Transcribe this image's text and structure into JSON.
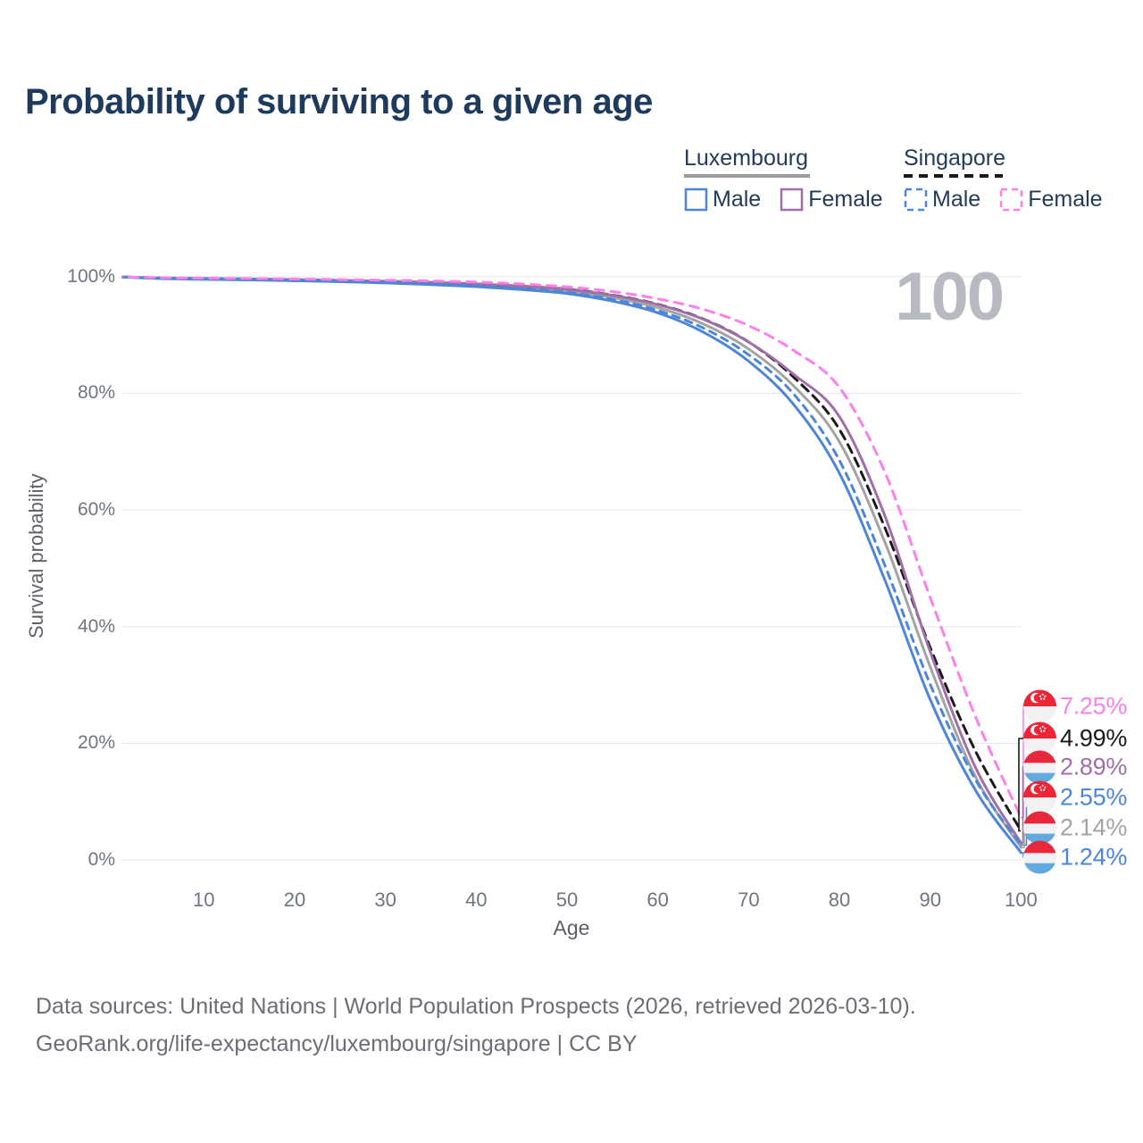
{
  "header": {
    "title": "Probability of surviving to a given age"
  },
  "legend": {
    "groups": [
      {
        "country": "Luxembourg",
        "line_style": "solid",
        "line_color": "#9b9b9b",
        "items": [
          {
            "label": "Male",
            "color": "#4d86d8",
            "dashed": false
          },
          {
            "label": "Female",
            "color": "#a06fa8",
            "dashed": false
          }
        ]
      },
      {
        "country": "Singapore",
        "line_style": "dashed",
        "line_color": "#1a1a1a",
        "items": [
          {
            "label": "Male",
            "color": "#4d86d8",
            "dashed": true
          },
          {
            "label": "Female",
            "color": "#fb80e8",
            "dashed": true
          }
        ]
      }
    ]
  },
  "chart_data": {
    "type": "line",
    "title": "Probability of surviving to a given age",
    "xlabel": "Age",
    "ylabel": "Survival probability",
    "watermark": "100",
    "grid": "horizontal",
    "xlim": [
      0,
      100
    ],
    "ylim": [
      0,
      100
    ],
    "x_ticks": [
      10,
      20,
      30,
      40,
      50,
      60,
      70,
      80,
      90,
      100
    ],
    "y_ticks": [
      "0%",
      "20%",
      "40%",
      "60%",
      "80%",
      "100%"
    ],
    "y_tick_values": [
      0,
      20,
      40,
      60,
      80,
      100
    ],
    "x": [
      0,
      5,
      10,
      15,
      20,
      25,
      30,
      35,
      40,
      45,
      50,
      55,
      60,
      65,
      70,
      75,
      80,
      85,
      90,
      95,
      100
    ],
    "series": [
      {
        "name": "Singapore Female",
        "flag": "sg",
        "color": "#fb80e8",
        "dash": "dashed",
        "end_label": "7.25%",
        "values": [
          100,
          99.82,
          99.75,
          99.68,
          99.6,
          99.5,
          99.4,
          99.27,
          99.08,
          98.75,
          98.25,
          97.45,
          96.2,
          94.4,
          91.6,
          87.3,
          81.0,
          66.5,
          45.0,
          24.5,
          7.25
        ]
      },
      {
        "name": "Singapore Both sexes",
        "flag": "sg",
        "color": "#1a1a1a",
        "dash": "dashed",
        "end_label": "4.99%",
        "values": [
          100,
          99.78,
          99.68,
          99.58,
          99.47,
          99.35,
          99.2,
          99.0,
          98.72,
          98.35,
          97.85,
          96.85,
          95.25,
          92.75,
          88.8,
          82.7,
          73.8,
          57.0,
          36.4,
          18.6,
          4.99
        ]
      },
      {
        "name": "Luxembourg Female",
        "flag": "lu",
        "color": "#a06fa8",
        "dash": "solid",
        "end_label": "2.89%",
        "values": [
          100,
          99.76,
          99.67,
          99.58,
          99.48,
          99.36,
          99.22,
          99.03,
          98.76,
          98.38,
          97.82,
          96.8,
          95.2,
          92.7,
          88.8,
          83.2,
          76.0,
          59.0,
          35.7,
          15.8,
          2.89
        ]
      },
      {
        "name": "Singapore Male",
        "flag": "sg",
        "color": "#4d86d8",
        "dash": "dashed",
        "end_label": "2.55%",
        "values": [
          100,
          99.74,
          99.62,
          99.48,
          99.33,
          99.18,
          99.0,
          98.75,
          98.4,
          97.92,
          97.3,
          96.1,
          94.2,
          91.2,
          86.6,
          79.8,
          68.5,
          50.5,
          30.1,
          13.7,
          2.55
        ]
      },
      {
        "name": "Luxembourg Both sexes",
        "flag": "lu",
        "color": "#a3a3a3",
        "dash": "solid",
        "end_label": "2.14%",
        "values": [
          100,
          99.72,
          99.62,
          99.52,
          99.4,
          99.26,
          99.08,
          98.85,
          98.52,
          98.08,
          97.48,
          96.4,
          94.7,
          91.9,
          87.6,
          81.2,
          71.7,
          54.5,
          33.1,
          14.2,
          2.14
        ]
      },
      {
        "name": "Luxembourg Male",
        "flag": "lu",
        "color": "#4d86d8",
        "dash": "solid",
        "end_label": "1.24%",
        "values": [
          100,
          99.68,
          99.56,
          99.44,
          99.3,
          99.12,
          98.92,
          98.64,
          98.28,
          97.78,
          97.1,
          95.8,
          93.8,
          90.5,
          85.5,
          78.0,
          66.3,
          48.0,
          27.5,
          11.9,
          1.24
        ]
      }
    ]
  },
  "footer": {
    "line1": "Data sources: United Nations | World Population Prospects (2026, retrieved 2026-03-10).",
    "line2": "GeoRank.org/life-expectancy/luxembourg/singapore | CC BY"
  }
}
